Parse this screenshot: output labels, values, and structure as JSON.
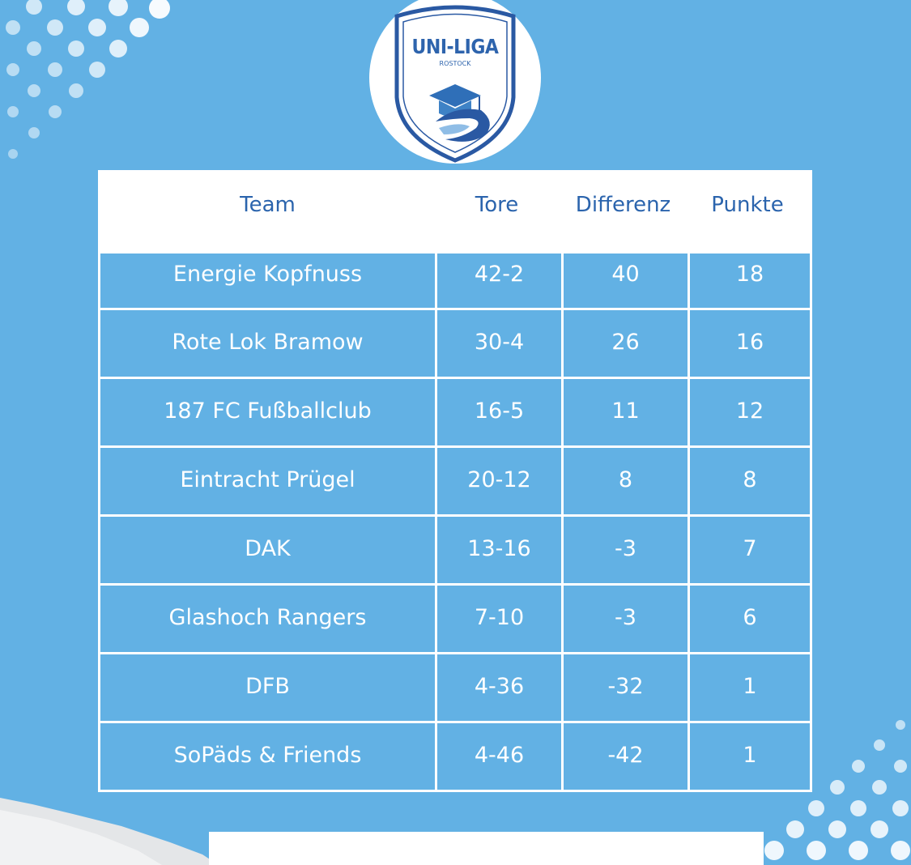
{
  "logo": {
    "title": "UNI-LIGA",
    "subtitle": "ROSTOCK"
  },
  "table": {
    "headers": [
      "Team",
      "Tore",
      "Differenz",
      "Punkte"
    ],
    "rows": [
      {
        "team": "Energie Kopfnuss",
        "tore": "42-2",
        "differenz": "40",
        "punkte": "18"
      },
      {
        "team": "Rote Lok Bramow",
        "tore": "30-4",
        "differenz": "26",
        "punkte": "16"
      },
      {
        "team": "187 FC Fußballclub",
        "tore": "16-5",
        "differenz": "11",
        "punkte": "12"
      },
      {
        "team": "Eintracht Prügel",
        "tore": "20-12",
        "differenz": "8",
        "punkte": "8"
      },
      {
        "team": "DAK",
        "tore": "13-16",
        "differenz": "-3",
        "punkte": "7"
      },
      {
        "team": "Glashoch Rangers",
        "tore": "7-10",
        "differenz": "-3",
        "punkte": "6"
      },
      {
        "team": "DFB",
        "tore": "4-36",
        "differenz": "-32",
        "punkte": "1"
      },
      {
        "team": "SoPäds & Friends",
        "tore": "4-46",
        "differenz": "-42",
        "punkte": "1"
      }
    ]
  },
  "colors": {
    "background": "#62b1e4",
    "header_text": "#2b64ad",
    "cell_text": "#ffffff",
    "grid": "#ffffff"
  }
}
